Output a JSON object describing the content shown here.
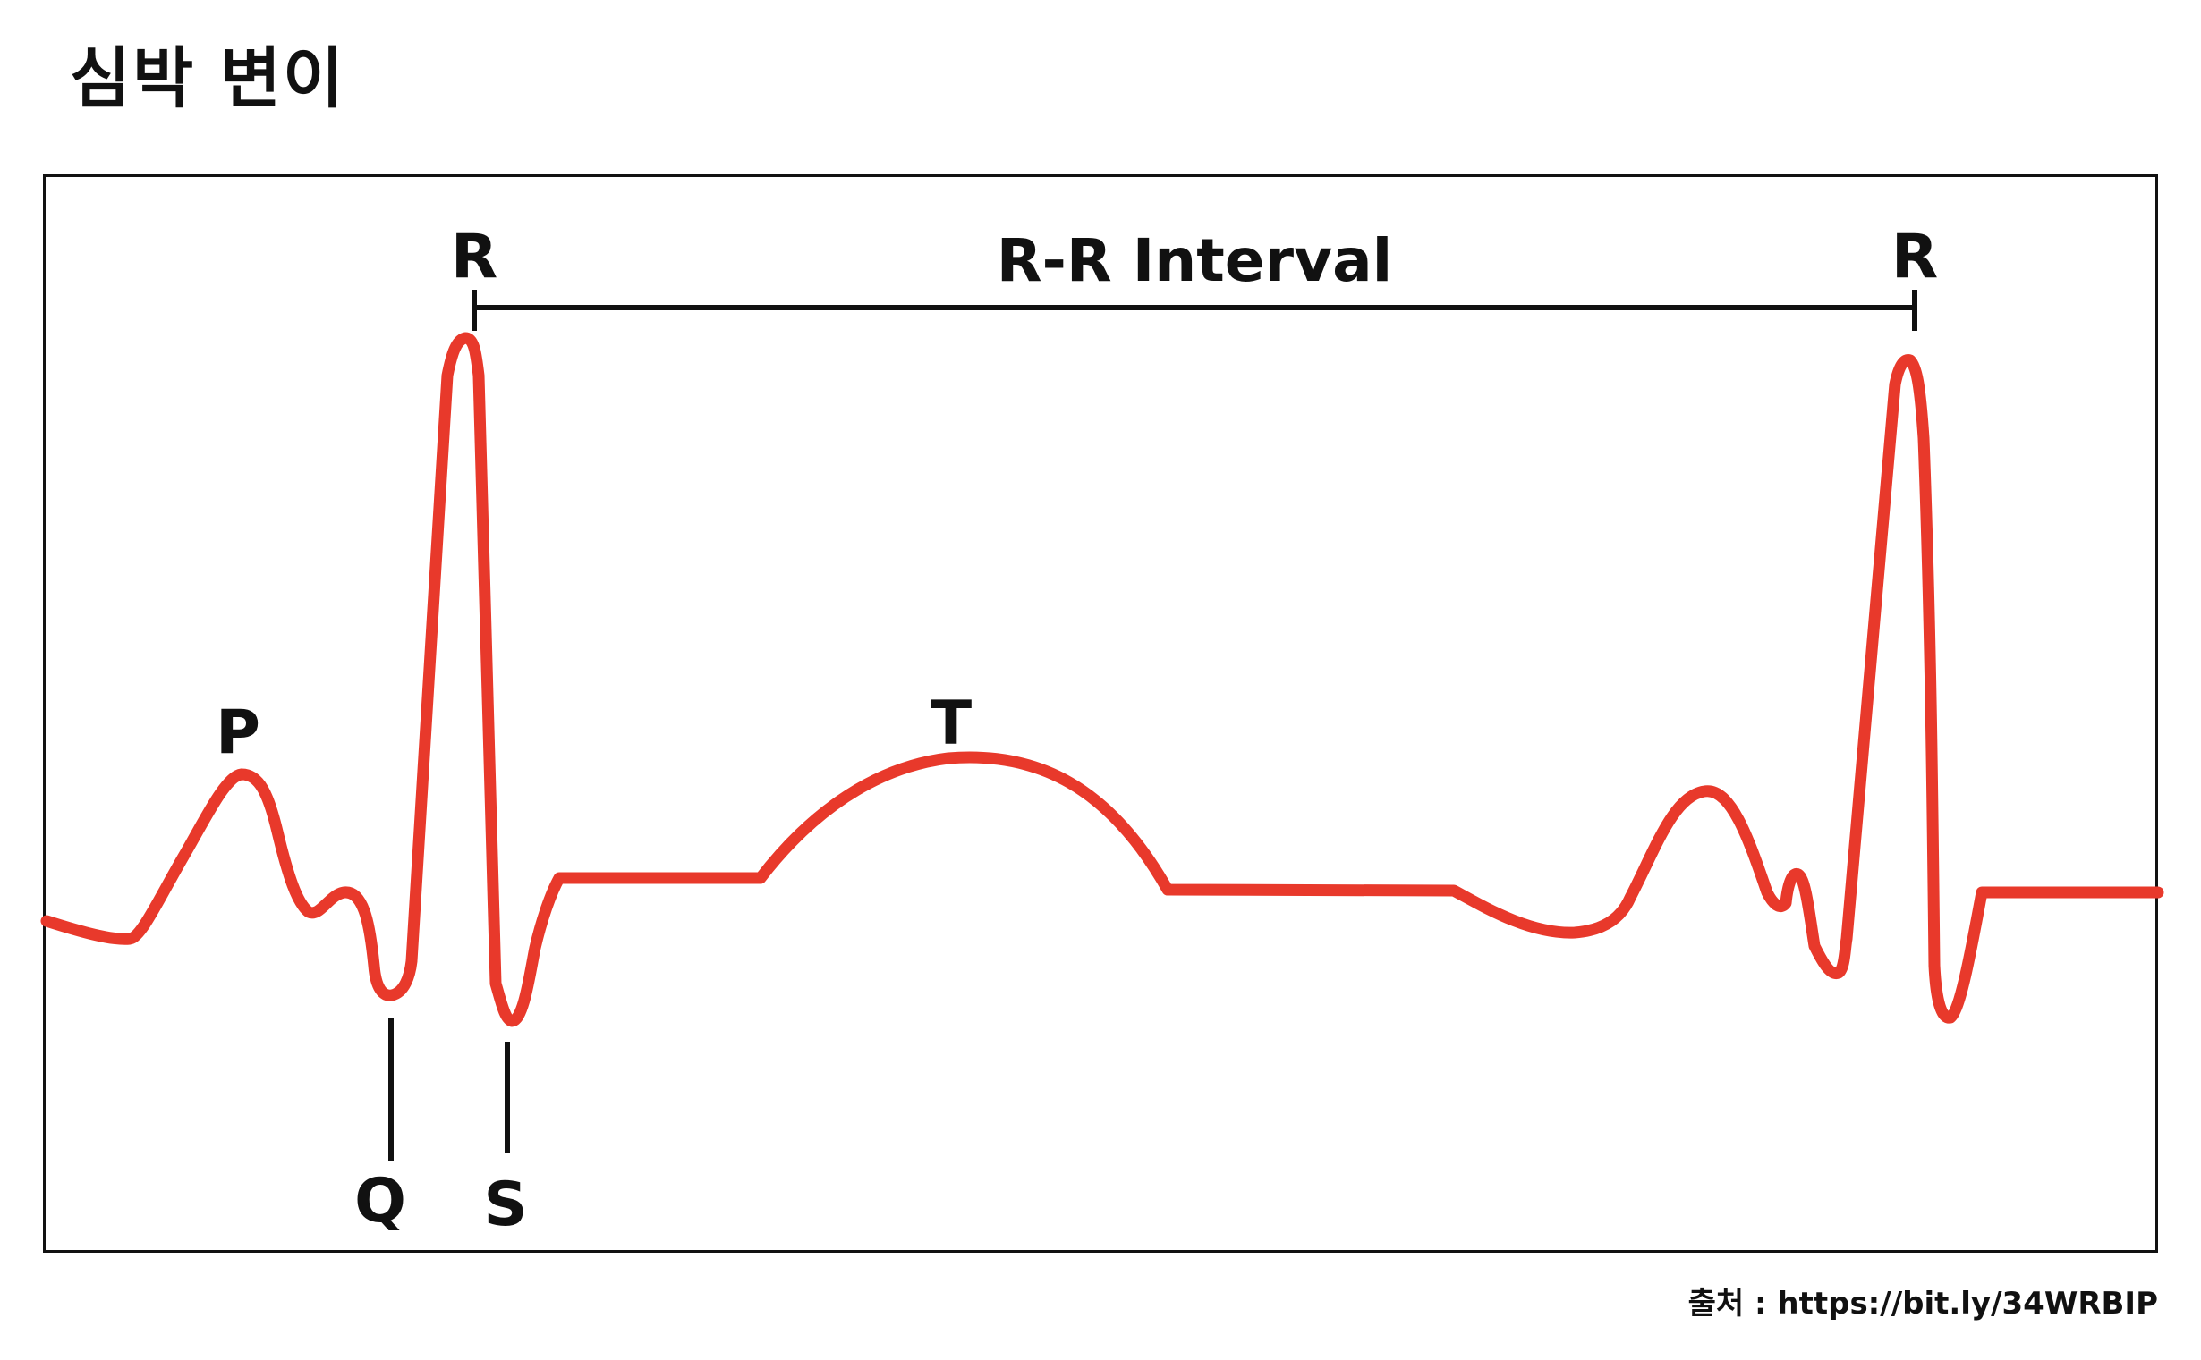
{
  "title": "심박 변이",
  "ecg": {
    "line_color": "#e8392b",
    "labels": {
      "p": "P",
      "q": "Q",
      "r_first": "R",
      "s": "S",
      "t": "T",
      "r_second": "R"
    },
    "interval_label": "R-R Interval"
  },
  "source": "출처 : https://bit.ly/34WRBIP"
}
